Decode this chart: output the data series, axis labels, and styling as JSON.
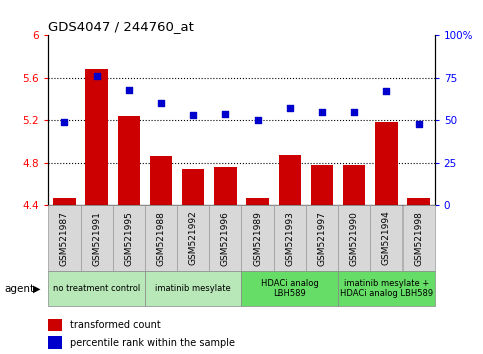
{
  "title": "GDS4047 / 244760_at",
  "categories": [
    "GSM521987",
    "GSM521991",
    "GSM521995",
    "GSM521988",
    "GSM521992",
    "GSM521996",
    "GSM521989",
    "GSM521993",
    "GSM521997",
    "GSM521990",
    "GSM521994",
    "GSM521998"
  ],
  "bar_values": [
    4.47,
    5.68,
    5.24,
    4.86,
    4.74,
    4.76,
    4.47,
    4.87,
    4.78,
    4.78,
    5.18,
    4.47
  ],
  "scatter_values": [
    49,
    76,
    68,
    60,
    53,
    54,
    50,
    57,
    55,
    55,
    67,
    48
  ],
  "ylim_left": [
    4.4,
    6.0
  ],
  "ylim_right": [
    0,
    100
  ],
  "yticks_left": [
    4.4,
    4.8,
    5.2,
    5.6,
    6.0
  ],
  "yticks_right": [
    0,
    25,
    50,
    75,
    100
  ],
  "ytick_labels_left": [
    "4.4",
    "4.8",
    "5.2",
    "5.6",
    "6"
  ],
  "ytick_labels_right": [
    "0",
    "25",
    "50",
    "75",
    "100%"
  ],
  "hlines": [
    4.8,
    5.2,
    5.6
  ],
  "bar_color": "#cc0000",
  "scatter_color": "#0000cc",
  "agent_groups": [
    {
      "label": "no treatment control",
      "start": 0,
      "end": 3,
      "color": "#b8e8b8"
    },
    {
      "label": "imatinib mesylate",
      "start": 3,
      "end": 6,
      "color": "#b8e8b8"
    },
    {
      "label": "HDACi analog\nLBH589",
      "start": 6,
      "end": 9,
      "color": "#66dd66"
    },
    {
      "label": "imatinib mesylate +\nHDACi analog LBH589",
      "start": 9,
      "end": 12,
      "color": "#66dd66"
    }
  ],
  "sample_box_color": "#d8d8d8",
  "sample_box_edge": "#999999",
  "legend_bar_label": "transformed count",
  "legend_scatter_label": "percentile rank within the sample",
  "agent_label": "agent"
}
